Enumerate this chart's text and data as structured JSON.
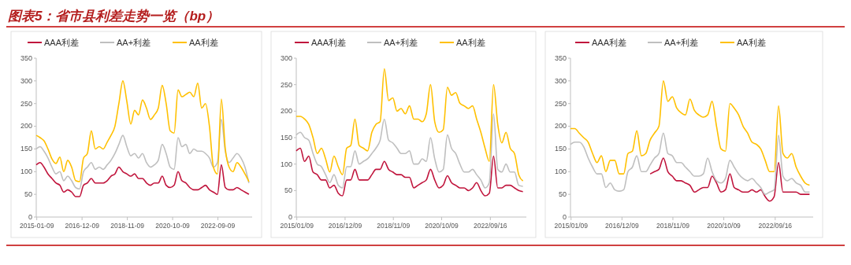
{
  "chart_data": [
    {
      "type": "line",
      "title": "图表5：省市县利差走势一览（bp）",
      "legend": "top",
      "line_style": "solid",
      "x": [
        "2015-01",
        "2015-03",
        "2015-05",
        "2015-07",
        "2015-09",
        "2015-11",
        "2016-01",
        "2016-03",
        "2016-05",
        "2016-07",
        "2016-09",
        "2016-11",
        "2017-01",
        "2017-03",
        "2017-05",
        "2017-07",
        "2017-09",
        "2017-11",
        "2018-01",
        "2018-03",
        "2018-05",
        "2018-07",
        "2018-09",
        "2018-11",
        "2019-01",
        "2019-03",
        "2019-05",
        "2019-07",
        "2019-09",
        "2019-11",
        "2020-01",
        "2020-03",
        "2020-05",
        "2020-07",
        "2020-09",
        "2020-11",
        "2021-01",
        "2021-03",
        "2021-05",
        "2021-07",
        "2021-09",
        "2021-11",
        "2022-01",
        "2022-03",
        "2022-05",
        "2022-07",
        "2022-09",
        "2022-11",
        "2023-01",
        "2023-03",
        "2023-05",
        "2023-07",
        "2023-09",
        "2023-11",
        "2024-01"
      ],
      "xlim": [
        "2015-01-01",
        "2024-02-20"
      ],
      "xticks": [
        {
          "value": "2015-01-09",
          "label": "2015-01-09"
        },
        {
          "value": "2016-12-09",
          "label": "2016-12-09"
        },
        {
          "value": "2018-11-09",
          "label": "2018-11-09"
        },
        {
          "value": "2020-10-09",
          "label": "2020-10-09"
        },
        {
          "value": "2022-09-09",
          "label": "2022-09-09"
        }
      ],
      "ylim": [
        0,
        350
      ],
      "yticks": [
        0,
        50,
        100,
        150,
        200,
        250,
        300,
        350
      ],
      "series": [
        {
          "name": "AAA利差",
          "color": "#c0143c",
          "values": [
            115,
            120,
            110,
            95,
            85,
            75,
            70,
            55,
            60,
            55,
            45,
            45,
            70,
            75,
            85,
            75,
            75,
            75,
            80,
            90,
            95,
            110,
            100,
            95,
            90,
            95,
            85,
            85,
            75,
            70,
            75,
            75,
            90,
            70,
            65,
            70,
            100,
            80,
            75,
            65,
            60,
            60,
            65,
            70,
            60,
            55,
            50,
            115,
            65,
            60,
            60,
            65,
            60,
            55,
            50
          ]
        },
        {
          "name": "AA+利差",
          "color": "#bfbfbf",
          "values": [
            150,
            155,
            145,
            130,
            110,
            95,
            100,
            80,
            90,
            80,
            65,
            62,
            100,
            110,
            120,
            105,
            110,
            105,
            115,
            125,
            140,
            160,
            180,
            155,
            135,
            140,
            130,
            140,
            120,
            110,
            115,
            125,
            160,
            140,
            110,
            105,
            175,
            155,
            160,
            140,
            150,
            145,
            145,
            140,
            130,
            110,
            120,
            215,
            145,
            120,
            130,
            140,
            130,
            110,
            75
          ]
        },
        {
          "name": "AA利差",
          "color": "#ffc000",
          "values": [
            180,
            175,
            168,
            150,
            128,
            118,
            132,
            100,
            125,
            110,
            80,
            78,
            130,
            140,
            190,
            150,
            155,
            150,
            165,
            180,
            200,
            250,
            300,
            255,
            205,
            235,
            225,
            258,
            240,
            215,
            225,
            240,
            290,
            250,
            190,
            185,
            280,
            265,
            270,
            275,
            265,
            295,
            240,
            250,
            200,
            110,
            95,
            260,
            150,
            110,
            100,
            120,
            110,
            95,
            78
          ]
        }
      ]
    },
    {
      "type": "line",
      "legend": "top",
      "line_style": "solid",
      "x": [
        "2015-01",
        "2015-03",
        "2015-05",
        "2015-07",
        "2015-09",
        "2015-11",
        "2016-01",
        "2016-03",
        "2016-05",
        "2016-07",
        "2016-09",
        "2016-11",
        "2017-01",
        "2017-03",
        "2017-05",
        "2017-07",
        "2017-09",
        "2017-11",
        "2018-01",
        "2018-03",
        "2018-05",
        "2018-07",
        "2018-09",
        "2018-11",
        "2019-01",
        "2019-03",
        "2019-05",
        "2019-07",
        "2019-09",
        "2019-11",
        "2020-01",
        "2020-03",
        "2020-05",
        "2020-07",
        "2020-09",
        "2020-11",
        "2021-01",
        "2021-03",
        "2021-05",
        "2021-07",
        "2021-09",
        "2021-11",
        "2022-01",
        "2022-03",
        "2022-05",
        "2022-07",
        "2022-09",
        "2022-11",
        "2023-01",
        "2023-03",
        "2023-05",
        "2023-07",
        "2023-09",
        "2023-11",
        "2024-01"
      ],
      "xlim": [
        "2015-01-01",
        "2024-02-20"
      ],
      "xticks": [
        {
          "value": "2015-01-09",
          "label": "2015/01/09"
        },
        {
          "value": "2016-12-09",
          "label": "2016/12/09"
        },
        {
          "value": "2018-11-09",
          "label": "2018/11/09"
        },
        {
          "value": "2020-10-09",
          "label": "2020/10/09"
        },
        {
          "value": "2022-09-16",
          "label": "2022/09/16"
        }
      ],
      "ylim": [
        0,
        300
      ],
      "yticks": [
        0,
        50,
        100,
        150,
        200,
        250,
        300
      ],
      "series": [
        {
          "name": "AAA利差",
          "color": "#c0143c",
          "values": [
            125,
            130,
            105,
            115,
            85,
            80,
            70,
            70,
            55,
            60,
            45,
            40,
            70,
            70,
            90,
            70,
            70,
            70,
            80,
            90,
            90,
            105,
            90,
            85,
            80,
            80,
            75,
            75,
            55,
            60,
            65,
            70,
            90,
            70,
            55,
            60,
            78,
            65,
            60,
            55,
            55,
            50,
            55,
            65,
            50,
            40,
            45,
            115,
            55,
            55,
            60,
            60,
            55,
            50,
            48
          ]
        },
        {
          "name": "AA+利差",
          "color": "#bfbfbf",
          "values": [
            155,
            160,
            150,
            145,
            120,
            100,
            95,
            80,
            65,
            80,
            60,
            55,
            95,
            95,
            125,
            100,
            105,
            110,
            120,
            130,
            145,
            185,
            145,
            140,
            130,
            120,
            120,
            125,
            100,
            100,
            110,
            105,
            150,
            110,
            85,
            90,
            155,
            130,
            120,
            100,
            85,
            85,
            90,
            80,
            70,
            55,
            65,
            195,
            90,
            85,
            100,
            85,
            85,
            60,
            58
          ]
        },
        {
          "name": "AA利差",
          "color": "#ffc000",
          "values": [
            190,
            190,
            185,
            175,
            150,
            120,
            130,
            110,
            85,
            115,
            95,
            80,
            130,
            135,
            185,
            135,
            130,
            125,
            160,
            175,
            180,
            280,
            220,
            225,
            200,
            205,
            195,
            210,
            185,
            185,
            180,
            195,
            250,
            180,
            160,
            165,
            245,
            230,
            235,
            215,
            210,
            205,
            210,
            185,
            160,
            130,
            105,
            250,
            175,
            140,
            160,
            130,
            120,
            80,
            68
          ]
        }
      ]
    },
    {
      "type": "line",
      "legend": "top",
      "line_style": "solid",
      "x": [
        "2015-01",
        "2015-03",
        "2015-05",
        "2015-07",
        "2015-09",
        "2015-11",
        "2016-01",
        "2016-03",
        "2016-05",
        "2016-07",
        "2016-09",
        "2016-11",
        "2017-01",
        "2017-03",
        "2017-05",
        "2017-07",
        "2017-09",
        "2017-11",
        "2018-01",
        "2018-03",
        "2018-05",
        "2018-07",
        "2018-09",
        "2018-11",
        "2019-01",
        "2019-03",
        "2019-05",
        "2019-07",
        "2019-09",
        "2019-11",
        "2020-01",
        "2020-03",
        "2020-05",
        "2020-07",
        "2020-09",
        "2020-11",
        "2021-01",
        "2021-03",
        "2021-05",
        "2021-07",
        "2021-09",
        "2021-11",
        "2022-01",
        "2022-03",
        "2022-05",
        "2022-07",
        "2022-09",
        "2022-11",
        "2023-01",
        "2023-03",
        "2023-05",
        "2023-07",
        "2023-09",
        "2023-11",
        "2024-01"
      ],
      "xlim": [
        "2015-01-01",
        "2024-02-20"
      ],
      "xticks": [
        {
          "value": "2015-01-09",
          "label": "2015/01/09"
        },
        {
          "value": "2016-12-09",
          "label": "2016/12/09"
        },
        {
          "value": "2018-11-09",
          "label": "2018/11/09"
        },
        {
          "value": "2020-10-09",
          "label": "2020/10/09"
        },
        {
          "value": "2022-09-16",
          "label": "2022/09/16"
        }
      ],
      "ylim": [
        0,
        350
      ],
      "yticks": [
        0,
        50,
        100,
        150,
        200,
        250,
        300,
        350
      ],
      "series": [
        {
          "name": "AAA利差",
          "color": "#c0143c",
          "values": [
            null,
            null,
            null,
            null,
            null,
            null,
            null,
            null,
            null,
            null,
            null,
            null,
            null,
            null,
            null,
            null,
            null,
            null,
            95,
            100,
            105,
            130,
            100,
            90,
            80,
            80,
            75,
            70,
            55,
            60,
            65,
            65,
            90,
            75,
            55,
            60,
            95,
            65,
            60,
            55,
            55,
            60,
            55,
            60,
            45,
            35,
            45,
            120,
            55,
            55,
            55,
            55,
            50,
            50,
            50
          ]
        },
        {
          "name": "AA+利差",
          "color": "#bfbfbf",
          "values": [
            160,
            165,
            165,
            155,
            130,
            110,
            95,
            95,
            65,
            75,
            60,
            57,
            60,
            100,
            110,
            135,
            100,
            100,
            115,
            130,
            140,
            185,
            140,
            135,
            120,
            120,
            110,
            100,
            90,
            90,
            95,
            130,
            100,
            80,
            75,
            85,
            125,
            110,
            95,
            85,
            80,
            85,
            75,
            65,
            50,
            55,
            60,
            180,
            90,
            80,
            85,
            75,
            70,
            55,
            55
          ]
        },
        {
          "name": "AA利差",
          "color": "#ffc000",
          "values": [
            195,
            195,
            185,
            175,
            165,
            140,
            120,
            135,
            100,
            125,
            125,
            95,
            95,
            140,
            145,
            190,
            135,
            140,
            170,
            185,
            200,
            300,
            255,
            265,
            240,
            230,
            225,
            260,
            235,
            225,
            220,
            225,
            255,
            200,
            150,
            145,
            250,
            240,
            225,
            200,
            185,
            165,
            160,
            150,
            125,
            100,
            100,
            245,
            140,
            130,
            140,
            110,
            90,
            75,
            70
          ]
        }
      ]
    }
  ]
}
